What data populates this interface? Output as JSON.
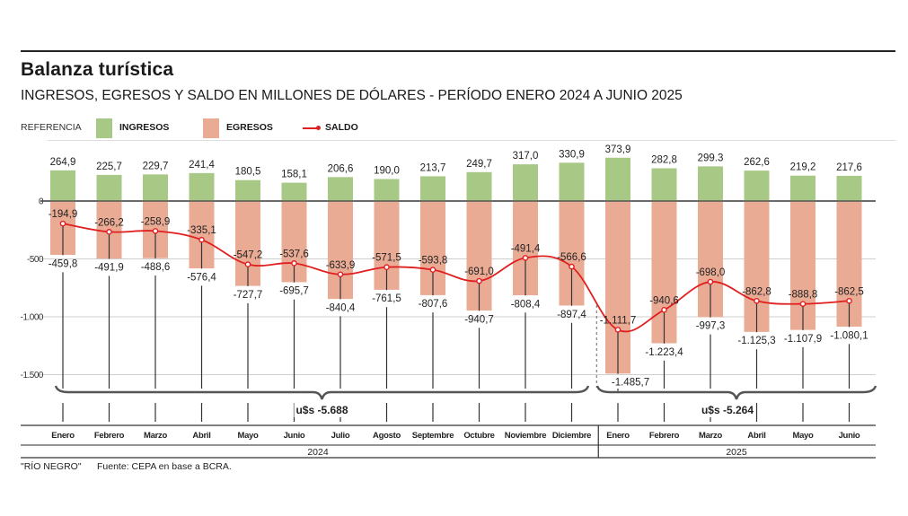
{
  "header": {
    "title": "Balanza turística",
    "subtitle": "INGRESOS, EGRESOS Y SALDO EN MILLONES DE DÓLARES - PERÍODO ENERO 2024 A JUNIO 2025"
  },
  "legend": {
    "reference_label": "REFERENCIA",
    "items": [
      {
        "label": "INGRESOS",
        "color": "#a8c985"
      },
      {
        "label": "EGRESOS",
        "color": "#eaab95"
      },
      {
        "label": "SALDO",
        "color": "#e02020"
      }
    ]
  },
  "footer": {
    "credit": "\"RÍO NEGRO\"",
    "source": "Fuente: CEPA en base a BCRA."
  },
  "chart_data": {
    "type": "bar",
    "title": "Balanza turística",
    "subtitle": "INGRESOS, EGRESOS Y SALDO EN MILLONES DE DÓLARES - PERÍODO ENERO 2024 A JUNIO 2025",
    "xlabel": "",
    "ylabel": "Millones de dólares",
    "ylim": [
      -1500,
      400
    ],
    "yticks": [
      0,
      -500,
      -1000,
      -1500
    ],
    "ytick_labels": [
      "0",
      "-500",
      "-1.000",
      "-1.500"
    ],
    "grid": true,
    "legend_position": "top-left",
    "categories": [
      "Enero",
      "Febrero",
      "Marzo",
      "Abril",
      "Mayo",
      "Junio",
      "Julio",
      "Agosto",
      "Septembre",
      "Octubre",
      "Noviembre",
      "Diciembre",
      "Enero",
      "Febrero",
      "Marzo",
      "Abril",
      "Mayo",
      "Junio"
    ],
    "years": [
      {
        "label": "2024",
        "months": 12,
        "total_label": "u$s -5.688"
      },
      {
        "label": "2025",
        "months": 6,
        "total_label": "u$s -5.264"
      }
    ],
    "series": [
      {
        "name": "INGRESOS",
        "type": "bar",
        "color": "#a8c985",
        "values": [
          264.9,
          225.7,
          229.7,
          241.4,
          180.5,
          158.1,
          206.6,
          190.0,
          213.7,
          249.7,
          317.0,
          330.9,
          373.9,
          282.8,
          299.3,
          262.6,
          219.2,
          217.6
        ],
        "labels": [
          "264,9",
          "225,7",
          "229,7",
          "241,4",
          "180,5",
          "158,1",
          "206,6",
          "190,0",
          "213,7",
          "249,7",
          "317,0",
          "330,9",
          "373,9",
          "282,8",
          "299.3",
          "262,6",
          "219,2",
          "217,6"
        ]
      },
      {
        "name": "EGRESOS",
        "type": "bar",
        "color": "#eaab95",
        "values": [
          -459.8,
          -491.9,
          -488.6,
          -576.4,
          -727.7,
          -695.7,
          -840.4,
          -761.5,
          -807.6,
          -940.7,
          -808.4,
          -897.4,
          -1485.7,
          -1223.4,
          -997.3,
          -1125.3,
          -1107.9,
          -1080.1
        ],
        "labels": [
          "-459,8",
          "-491,9",
          "-488,6",
          "-576,4",
          "-727,7",
          "-695,7",
          "-840,4",
          "-761,5",
          "-807,6",
          "-940,7",
          "-808,4",
          "-897,4",
          "-1.485,7",
          "-1.223,4",
          "-997,3",
          "-1.125,3",
          "-1.107,9",
          "-1.080,1"
        ]
      },
      {
        "name": "SALDO",
        "type": "line",
        "color": "#e02020",
        "values": [
          -194.9,
          -266.2,
          -258.9,
          -335.1,
          -547.2,
          -537.6,
          -633.9,
          -571.5,
          -593.8,
          -691.0,
          -491.4,
          -566.6,
          -1111.7,
          -940.6,
          -698.0,
          -862.8,
          -888.8,
          -862.5
        ],
        "labels": [
          "-194,9",
          "-266,2",
          "-258,9",
          "-335,1",
          "-547,2",
          "-537,6",
          "-633,9",
          "-571,5",
          "-593,8",
          "-691,0",
          "-491,4",
          "-566,6",
          "-1.111,7",
          "-940,6",
          "-698,0",
          "-862,8",
          "-888,8",
          "-862,5"
        ]
      }
    ]
  }
}
